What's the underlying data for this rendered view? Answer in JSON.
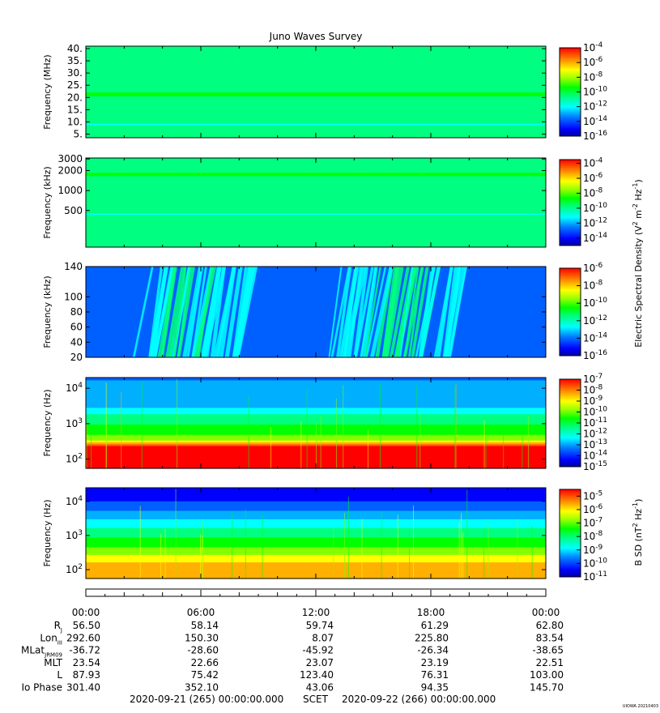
{
  "title": "Juno Waves Survey",
  "credit": "UIOWA 20210403",
  "colors": {
    "scale": [
      "#0000a0",
      "#0000ff",
      "#0060ff",
      "#00b0ff",
      "#00ffff",
      "#00ff80",
      "#00ff00",
      "#80ff00",
      "#ffff00",
      "#ffb000",
      "#ff6000",
      "#ff0000"
    ]
  },
  "chart_data": [
    {
      "type": "heatmap",
      "panel": "p1",
      "ylabel": "Frequency (MHz)",
      "yscale": "linear",
      "ylim": [
        3.5,
        41
      ],
      "yticks": [
        {
          "v": 40,
          "label": "40."
        },
        {
          "v": 35,
          "label": "35."
        },
        {
          "v": 30,
          "label": "30."
        },
        {
          "v": 25,
          "label": "25."
        },
        {
          "v": 20,
          "label": "20."
        },
        {
          "v": 15,
          "label": "15."
        },
        {
          "v": 10,
          "label": "10."
        },
        {
          "v": 5,
          "label": "5."
        }
      ],
      "colorbar": {
        "min_exp": -16,
        "max_exp": -4,
        "ticks": [
          -4,
          -6,
          -8,
          -10,
          -12,
          -14,
          -16
        ]
      },
      "background_level": 0.42,
      "bands": [
        {
          "y0": 20.5,
          "y1": 22.0,
          "level": 0.55
        },
        {
          "y0": 8.6,
          "y1": 9.2,
          "level": 0.38
        }
      ]
    },
    {
      "type": "heatmap",
      "panel": "p2",
      "ylabel": "Frequency (kHz)",
      "yscale": "log",
      "ylim": [
        140,
        3100
      ],
      "yticks": [
        {
          "v": 3000,
          "label": "3000"
        },
        {
          "v": 2000,
          "label": "2000"
        },
        {
          "v": 1000,
          "label": "1000"
        },
        {
          "v": 500,
          "label": "500"
        }
      ],
      "colorbar": {
        "min_exp": -15,
        "max_exp": -3.5,
        "ticks": [
          -4,
          -6,
          -8,
          -10,
          -12,
          -14
        ]
      },
      "background_level": 0.42,
      "bands": [
        {
          "y0": 1650,
          "y1": 1850,
          "level": 0.56
        },
        {
          "y0": 2100,
          "y1": 2400,
          "level": 0.47
        },
        {
          "y0": 550,
          "y1": 580,
          "level": 0.46
        },
        {
          "y0": 430,
          "y1": 450,
          "level": 0.38
        }
      ]
    },
    {
      "type": "heatmap",
      "panel": "p3",
      "ylabel": "Frequency (kHz)",
      "yscale": "linear",
      "ylim": [
        20,
        140
      ],
      "yticks": [
        {
          "v": 140,
          "label": "140"
        },
        {
          "v": 100,
          "label": "100"
        },
        {
          "v": 80,
          "label": "80"
        },
        {
          "v": 60,
          "label": "60"
        },
        {
          "v": 40,
          "label": "40"
        },
        {
          "v": 20,
          "label": "20"
        }
      ],
      "colorbar": {
        "min_exp": -16,
        "max_exp": -6,
        "ticks": [
          -6,
          -8,
          -10,
          -12,
          -14,
          -16
        ]
      },
      "background_level": 0.22,
      "bursts": [
        {
          "t": 3.1,
          "w": 0.6,
          "level": 0.36
        },
        {
          "t": 4.1,
          "w": 0.9,
          "level": 0.4
        },
        {
          "t": 5.2,
          "w": 0.7,
          "level": 0.38
        },
        {
          "t": 6.6,
          "w": 0.6,
          "level": 0.36
        },
        {
          "t": 7.6,
          "w": 0.4,
          "level": 0.34
        },
        {
          "t": 13.2,
          "w": 0.6,
          "level": 0.35
        },
        {
          "t": 14.5,
          "w": 0.7,
          "level": 0.38
        },
        {
          "t": 15.8,
          "w": 0.9,
          "level": 0.4
        },
        {
          "t": 17.0,
          "w": 0.6,
          "level": 0.38
        },
        {
          "t": 18.6,
          "w": 0.4,
          "level": 0.34
        }
      ]
    },
    {
      "type": "heatmap",
      "panel": "p4",
      "ylabel": "Frequency (Hz)",
      "yscale": "log",
      "ylim": [
        55,
        20000
      ],
      "yticks": [
        {
          "v": 10000,
          "label": "10^4"
        },
        {
          "v": 1000,
          "label": "10^3"
        },
        {
          "v": 100,
          "label": "10^2"
        }
      ],
      "colorbar": {
        "min_exp": -15,
        "max_exp": -7,
        "ticks": [
          -7,
          -8,
          -9,
          -10,
          -11,
          -12,
          -13,
          -14,
          -15
        ]
      },
      "profile": [
        {
          "f": 20000,
          "level": 0.22
        },
        {
          "f": 3000,
          "level": 0.3
        },
        {
          "f": 1500,
          "level": 0.45
        },
        {
          "f": 600,
          "level": 0.55
        },
        {
          "f": 350,
          "level": 0.65
        },
        {
          "f": 280,
          "level": 0.82
        },
        {
          "f": 230,
          "level": 0.97
        },
        {
          "f": 55,
          "level": 1.0
        }
      ]
    },
    {
      "type": "heatmap",
      "panel": "p5",
      "ylabel": "Frequency (Hz)",
      "yscale": "log",
      "ylim": [
        55,
        25000
      ],
      "yticks": [
        {
          "v": 10000,
          "label": "10^4"
        },
        {
          "v": 1000,
          "label": "10^3"
        },
        {
          "v": 100,
          "label": "10^2"
        }
      ],
      "colorbar": {
        "min_exp": -11,
        "max_exp": -4.5,
        "ticks": [
          -5,
          -6,
          -7,
          -8,
          -9,
          -10,
          -11
        ]
      },
      "profile": [
        {
          "f": 25000,
          "level": 0.05
        },
        {
          "f": 10000,
          "level": 0.13
        },
        {
          "f": 4000,
          "level": 0.27
        },
        {
          "f": 1500,
          "level": 0.42
        },
        {
          "f": 600,
          "level": 0.55
        },
        {
          "f": 300,
          "level": 0.66
        },
        {
          "f": 180,
          "level": 0.76
        },
        {
          "f": 110,
          "level": 0.82
        },
        {
          "f": 55,
          "level": 0.86
        }
      ]
    }
  ],
  "colorbar_labels": {
    "efield_prefix": "Electric Spectral Density (V",
    "efield_mid": " m",
    "efield_mid2": " Hz",
    "efield_suffix": ")",
    "bfield_prefix": "B SD (nT",
    "bfield_mid": " Hz",
    "bfield_suffix": ")",
    "sup2": "2",
    "supm2": "-2",
    "supm1": "-1"
  },
  "xaxis": {
    "hours_start": 0,
    "hours_end": 24,
    "time_labels": [
      "00:00",
      "06:00",
      "12:00",
      "18:00",
      "00:00"
    ]
  },
  "ephemeris": {
    "rows": [
      {
        "label": "R",
        "sub": "J",
        "values": [
          "56.50",
          "58.14",
          "59.74",
          "61.29",
          "62.80"
        ]
      },
      {
        "label": "Lon",
        "sub": "III",
        "values": [
          "292.60",
          "150.30",
          "8.07",
          "225.80",
          "83.54"
        ]
      },
      {
        "label": "MLat",
        "sub": "JRM09",
        "values": [
          "-36.72",
          "-28.60",
          "-45.92",
          "-26.34",
          "-38.65"
        ]
      },
      {
        "label": "MLT",
        "sub": "",
        "values": [
          "23.54",
          "22.66",
          "23.07",
          "23.19",
          "22.51"
        ]
      },
      {
        "label": "L",
        "sub": "",
        "values": [
          "87.93",
          "75.42",
          "123.40",
          "76.31",
          "103.00"
        ]
      },
      {
        "label": "Io Phase",
        "sub": "",
        "values": [
          "301.40",
          "352.10",
          "43.06",
          "94.35",
          "145.70"
        ]
      }
    ]
  },
  "footer": {
    "start": "2020-09-21 (265) 00:00:00.000",
    "scet": "SCET",
    "end": "2020-09-22 (266) 00:00:00.000"
  }
}
